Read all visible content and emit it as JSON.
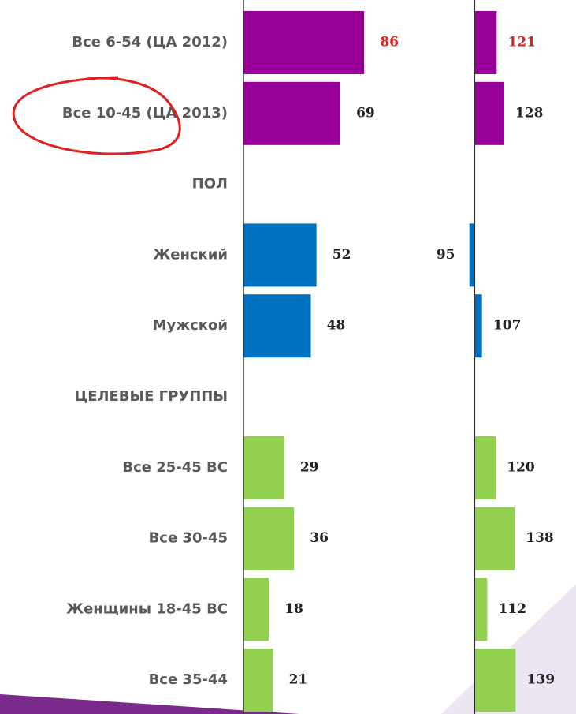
{
  "chart_data": {
    "type": "bar",
    "orientation": "horizontal",
    "categories": [
      "Все 6-54 (ЦА 2012)",
      "Все 10-45 (ЦА 2013)",
      "ПОЛ",
      "Женский",
      "Мужской",
      "ЦЕЛЕВЫЕ ГРУППЫ",
      "Все 25-45 ВС",
      "Все 30-45",
      "Женщины 18-45 ВС",
      "Все 35-44"
    ],
    "series": [
      {
        "values": [
          86,
          69,
          null,
          52,
          48,
          null,
          29,
          36,
          18,
          21
        ],
        "colors": [
          "#990099",
          "#990099",
          null,
          "#0070c0",
          "#0070c0",
          null,
          "#92d050",
          "#92d050",
          "#92d050",
          "#92d050"
        ],
        "label_colors": [
          "#e02020",
          "#222222",
          null,
          "#222222",
          "#222222",
          null,
          "#222222",
          "#222222",
          "#222222",
          "#222222"
        ],
        "xlim": [
          0,
          160
        ],
        "base": 0
      },
      {
        "values": [
          121,
          128,
          null,
          95,
          107,
          null,
          120,
          138,
          112,
          139
        ],
        "colors": [
          "#990099",
          "#990099",
          null,
          "#0070c0",
          "#0070c0",
          null,
          "#92d050",
          "#92d050",
          "#92d050",
          "#92d050"
        ],
        "label_colors": [
          "#e02020",
          "#222222",
          null,
          "#222222",
          "#222222",
          null,
          "#222222",
          "#222222",
          "#222222",
          "#222222"
        ],
        "xlim": [
          90,
          150
        ],
        "base": 100
      }
    ]
  }
}
